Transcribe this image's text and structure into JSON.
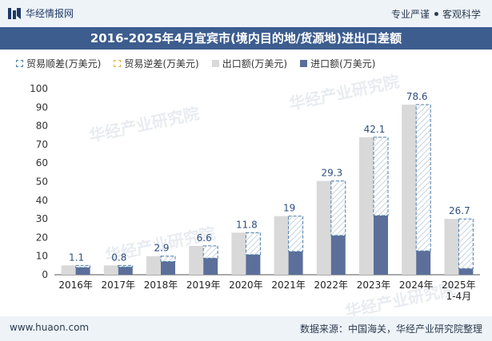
{
  "header": {
    "brand": "华经情报网",
    "tag1": "专业严谨",
    "tag2": "客观科学"
  },
  "title": "2016-2025年4月宜宾市(境内目的地/货源地)进出口差额",
  "legend": {
    "surplus": "贸易顺差(万美元)",
    "deficit": "贸易逆差(万美元)",
    "export": "出口额(万美元)",
    "import": "进口额(万美元)"
  },
  "footer": {
    "url": "www.huaon.com",
    "source": "数据来源：中国海关，华经产业研究院整理"
  },
  "watermark": "华经产业研究院",
  "chart_data": {
    "type": "bar",
    "categories": [
      "2016年",
      "2017年",
      "2018年",
      "2019年",
      "2020年",
      "2021年",
      "2022年",
      "2023年",
      "2024年",
      "2025年\n1-4月"
    ],
    "series": [
      {
        "name": "出口额(万美元)",
        "values": [
          5.0,
          5.0,
          10.0,
          15.5,
          22.6,
          31.5,
          50.4,
          73.9,
          91.4,
          30.0
        ]
      },
      {
        "name": "进口额(万美元)",
        "values": [
          3.9,
          4.2,
          7.1,
          8.9,
          10.8,
          12.5,
          21.1,
          31.8,
          12.8,
          3.3
        ]
      },
      {
        "name": "贸易顺差(万美元)",
        "values": [
          1.1,
          0.8,
          2.9,
          6.6,
          11.8,
          19,
          29.3,
          42.1,
          78.6,
          26.7
        ]
      }
    ],
    "ylim": [
      0,
      100
    ],
    "yticks": [
      0,
      10,
      20,
      30,
      40,
      50,
      60,
      70,
      80,
      90,
      100
    ],
    "colors": {
      "export": "#d9d9d9",
      "import": "#5b6f9a",
      "surplus": "#4d7fa8",
      "deficit": "#e3b33d",
      "label": "#2f4f7f"
    }
  }
}
